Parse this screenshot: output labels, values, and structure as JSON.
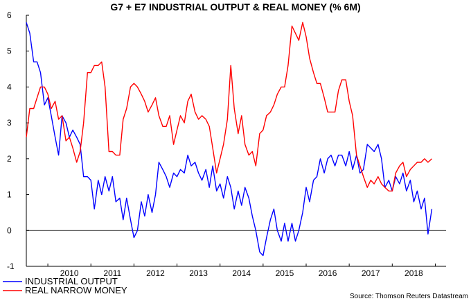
{
  "chart_data": {
    "type": "line",
    "title": "G7 + E7 INDUSTRIAL OUTPUT & REAL MONEY (% 6M)",
    "source": "Source: Thomson Reuters Datastream",
    "ylim": [
      -1,
      6
    ],
    "yticks": [
      -1,
      0,
      1,
      2,
      3,
      4,
      5,
      6
    ],
    "xlim": [
      2009.5,
      2019.25
    ],
    "xtick_labels": [
      "2010",
      "2011",
      "2012",
      "2013",
      "2014",
      "2015",
      "2016",
      "2017",
      "2018"
    ],
    "grid": false,
    "zero_line": true,
    "legend_position": "bottom-left",
    "series": [
      {
        "name": "INDUSTRIAL OUTPUT",
        "color": "#0000ff",
        "x": [
          2009.5,
          2009.58,
          2009.67,
          2009.75,
          2009.83,
          2009.92,
          2010.0,
          2010.08,
          2010.17,
          2010.25,
          2010.33,
          2010.42,
          2010.5,
          2010.58,
          2010.67,
          2010.75,
          2010.83,
          2010.92,
          2011.0,
          2011.08,
          2011.17,
          2011.25,
          2011.33,
          2011.42,
          2011.5,
          2011.58,
          2011.67,
          2011.75,
          2011.83,
          2011.92,
          2012.0,
          2012.08,
          2012.17,
          2012.25,
          2012.33,
          2012.42,
          2012.5,
          2012.58,
          2012.67,
          2012.75,
          2012.83,
          2012.92,
          2013.0,
          2013.08,
          2013.17,
          2013.25,
          2013.33,
          2013.42,
          2013.5,
          2013.58,
          2013.67,
          2013.75,
          2013.83,
          2013.92,
          2014.0,
          2014.08,
          2014.17,
          2014.25,
          2014.33,
          2014.42,
          2014.5,
          2014.58,
          2014.67,
          2014.75,
          2014.83,
          2014.92,
          2015.0,
          2015.08,
          2015.17,
          2015.25,
          2015.33,
          2015.42,
          2015.5,
          2015.58,
          2015.67,
          2015.75,
          2015.83,
          2015.92,
          2016.0,
          2016.08,
          2016.17,
          2016.25,
          2016.33,
          2016.42,
          2016.5,
          2016.58,
          2016.67,
          2016.75,
          2016.83,
          2016.92,
          2017.0,
          2017.08,
          2017.17,
          2017.25,
          2017.33,
          2017.42,
          2017.5,
          2017.58,
          2017.67,
          2017.75,
          2017.83,
          2017.92,
          2018.0,
          2018.08,
          2018.17,
          2018.25,
          2018.33,
          2018.42,
          2018.5,
          2018.58,
          2018.67,
          2018.75,
          2018.83,
          2018.92
        ],
        "values": [
          5.8,
          5.5,
          4.7,
          4.7,
          4.4,
          3.5,
          3.7,
          3.2,
          2.6,
          2.1,
          3.2,
          3.0,
          2.6,
          2.8,
          2.6,
          2.4,
          1.5,
          1.5,
          1.4,
          0.6,
          1.4,
          1.0,
          1.5,
          1.1,
          1.5,
          0.8,
          0.9,
          0.3,
          0.9,
          0.3,
          -0.2,
          0.0,
          0.8,
          0.4,
          1.0,
          0.5,
          1.0,
          1.9,
          1.7,
          1.5,
          1.2,
          1.6,
          1.5,
          1.7,
          1.6,
          2.1,
          1.8,
          1.9,
          1.6,
          1.4,
          1.7,
          1.2,
          1.8,
          1.1,
          1.3,
          0.9,
          1.5,
          1.2,
          0.6,
          1.1,
          0.7,
          1.2,
          0.9,
          0.4,
          0.0,
          -0.6,
          -0.7,
          -0.2,
          0.3,
          0.6,
          0.0,
          -0.3,
          0.2,
          -0.3,
          0.2,
          -0.3,
          0.0,
          0.5,
          1.2,
          0.8,
          1.4,
          1.5,
          2.0,
          1.6,
          2.0,
          2.1,
          1.8,
          2.1,
          2.1,
          1.8,
          2.2,
          1.7,
          2.1,
          1.6,
          1.7,
          2.4,
          2.3,
          2.2,
          2.4,
          2.0,
          1.2,
          1.4,
          1.1,
          1.5,
          1.3,
          1.6,
          1.1,
          1.4,
          0.8,
          1.1,
          0.6,
          0.9,
          -0.1,
          0.6
        ]
      },
      {
        "name": "REAL NARROW MONEY",
        "color": "#ff0000",
        "x": [
          2009.5,
          2009.58,
          2009.67,
          2009.75,
          2009.83,
          2009.92,
          2010.0,
          2010.08,
          2010.17,
          2010.25,
          2010.33,
          2010.42,
          2010.5,
          2010.58,
          2010.67,
          2010.75,
          2010.83,
          2010.92,
          2011.0,
          2011.08,
          2011.17,
          2011.25,
          2011.33,
          2011.42,
          2011.5,
          2011.58,
          2011.67,
          2011.75,
          2011.83,
          2011.92,
          2012.0,
          2012.08,
          2012.17,
          2012.25,
          2012.33,
          2012.42,
          2012.5,
          2012.58,
          2012.67,
          2012.75,
          2012.83,
          2012.92,
          2013.0,
          2013.08,
          2013.17,
          2013.25,
          2013.33,
          2013.42,
          2013.5,
          2013.58,
          2013.67,
          2013.75,
          2013.83,
          2013.92,
          2014.0,
          2014.08,
          2014.17,
          2014.25,
          2014.33,
          2014.42,
          2014.5,
          2014.58,
          2014.67,
          2014.75,
          2014.83,
          2014.92,
          2015.0,
          2015.08,
          2015.17,
          2015.25,
          2015.33,
          2015.42,
          2015.5,
          2015.58,
          2015.67,
          2015.75,
          2015.83,
          2015.92,
          2016.0,
          2016.08,
          2016.17,
          2016.25,
          2016.33,
          2016.42,
          2016.5,
          2016.58,
          2016.67,
          2016.75,
          2016.83,
          2016.92,
          2017.0,
          2017.08,
          2017.17,
          2017.25,
          2017.33,
          2017.42,
          2017.5,
          2017.58,
          2017.67,
          2017.75,
          2017.83,
          2017.92,
          2018.0,
          2018.08,
          2018.17,
          2018.25,
          2018.33,
          2018.42,
          2018.5,
          2018.58,
          2018.67,
          2018.75,
          2018.83,
          2018.92
        ],
        "values": [
          2.6,
          3.4,
          3.4,
          3.7,
          4.0,
          4.0,
          3.8,
          3.4,
          3.6,
          3.1,
          3.2,
          2.5,
          2.6,
          2.3,
          1.9,
          2.2,
          3.0,
          4.4,
          4.4,
          4.6,
          4.6,
          4.7,
          4.0,
          2.2,
          2.2,
          2.1,
          2.1,
          3.1,
          3.4,
          4.0,
          4.1,
          4.0,
          3.8,
          3.6,
          3.3,
          3.5,
          3.7,
          3.2,
          2.9,
          2.9,
          3.2,
          2.4,
          2.8,
          3.2,
          3.0,
          3.6,
          3.8,
          3.3,
          3.1,
          3.2,
          3.1,
          2.9,
          2.3,
          1.6,
          2.0,
          2.4,
          3.1,
          4.6,
          3.4,
          2.7,
          3.2,
          2.4,
          2.1,
          2.2,
          1.8,
          2.7,
          2.8,
          3.2,
          3.3,
          3.5,
          3.8,
          4.0,
          4.0,
          4.6,
          5.7,
          5.5,
          5.3,
          5.8,
          5.4,
          4.8,
          4.4,
          4.1,
          4.1,
          3.7,
          3.3,
          3.3,
          3.3,
          3.9,
          4.2,
          4.2,
          3.6,
          3.2,
          2.1,
          1.8,
          1.5,
          1.2,
          1.4,
          1.3,
          1.5,
          1.3,
          1.2,
          1.1,
          1.1,
          1.6,
          1.8,
          1.9,
          1.5,
          1.7,
          1.8,
          1.9,
          1.9,
          2.0,
          1.9,
          2.0
        ]
      }
    ]
  }
}
